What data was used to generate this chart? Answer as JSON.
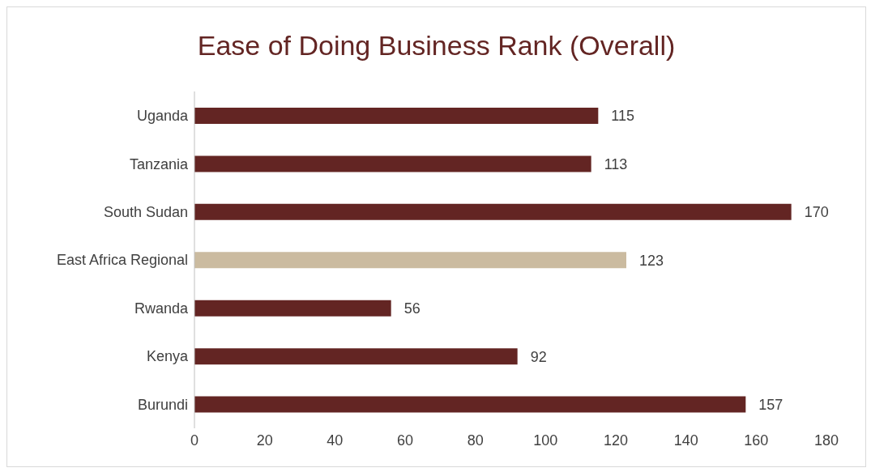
{
  "chart_data": {
    "type": "bar",
    "orientation": "horizontal",
    "title": "Ease of Doing Business Rank (Overall)",
    "categories": [
      "Uganda",
      "Tanzania",
      "South Sudan",
      "East Africa Regional",
      "Rwanda",
      "Kenya",
      "Burundi"
    ],
    "values": [
      115,
      113,
      170,
      123,
      56,
      92,
      157
    ],
    "colors": [
      "#632523",
      "#632523",
      "#632523",
      "#cbbba0",
      "#632523",
      "#632523",
      "#632523"
    ],
    "xlim": [
      0,
      180
    ],
    "xticks": [
      0,
      20,
      40,
      60,
      80,
      100,
      120,
      140,
      160,
      180
    ],
    "grid": false,
    "data_labels": true
  }
}
